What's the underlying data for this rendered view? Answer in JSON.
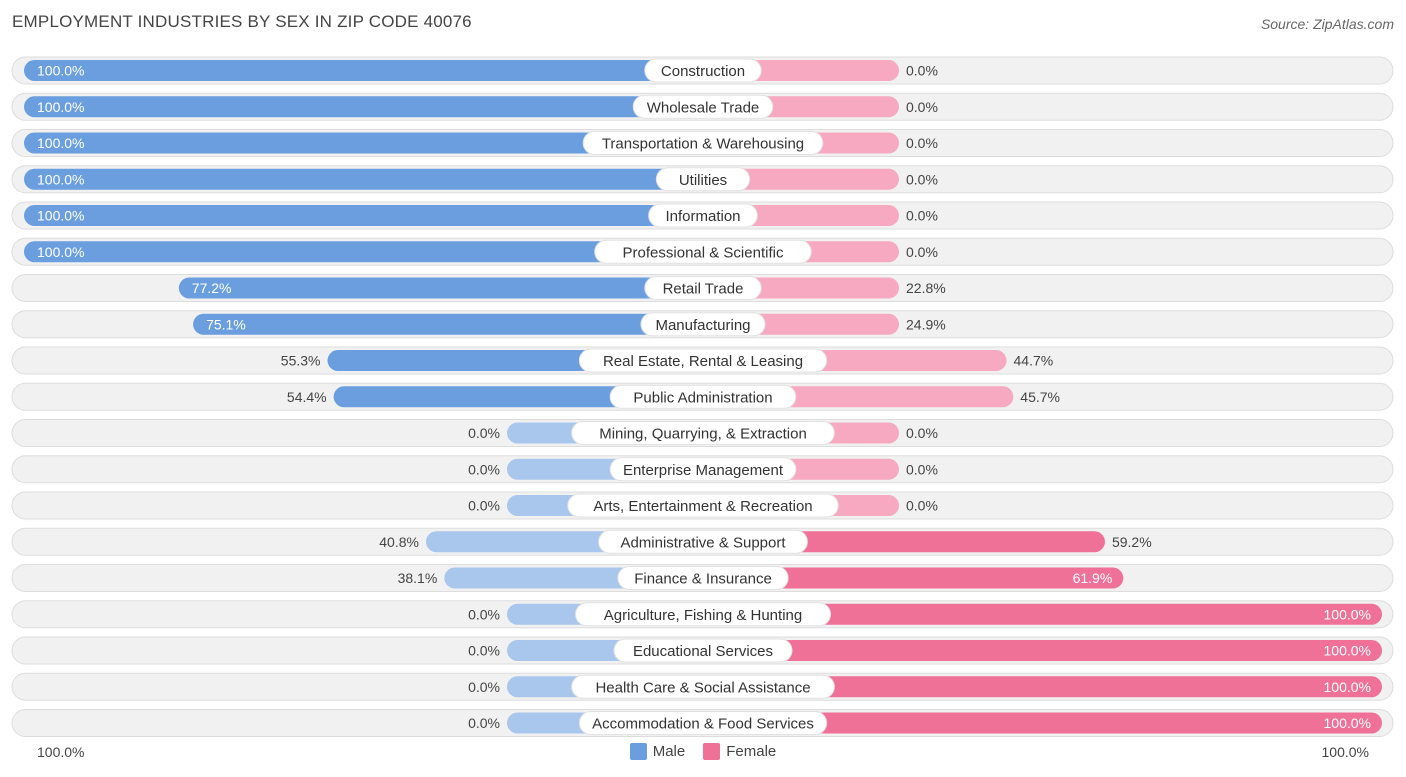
{
  "title": "EMPLOYMENT INDUSTRIES BY SEX IN ZIP CODE 40076",
  "source": "Source: ZipAtlas.com",
  "colors": {
    "male": "#6a9edf",
    "male_light": "#a9c7ec",
    "female": "#f07198",
    "female_light": "#f6a9c0"
  },
  "legend": {
    "male": "Male",
    "female": "Female"
  },
  "axis": {
    "left": "100.0%",
    "right": "100.0%"
  },
  "chart_data": {
    "type": "bar",
    "orientation": "horizontal-diverging",
    "title": "EMPLOYMENT INDUSTRIES BY SEX IN ZIP CODE 40076",
    "categories": [
      "Construction",
      "Wholesale Trade",
      "Transportation & Warehousing",
      "Utilities",
      "Information",
      "Professional & Scientific",
      "Retail Trade",
      "Manufacturing",
      "Real Estate, Rental & Leasing",
      "Public Administration",
      "Mining, Quarrying, & Extraction",
      "Enterprise Management",
      "Arts, Entertainment & Recreation",
      "Administrative & Support",
      "Finance & Insurance",
      "Agriculture, Fishing & Hunting",
      "Educational Services",
      "Health Care & Social Assistance",
      "Accommodation & Food Services"
    ],
    "series": [
      {
        "name": "Male",
        "values": [
          100.0,
          100.0,
          100.0,
          100.0,
          100.0,
          100.0,
          77.2,
          75.1,
          55.3,
          54.4,
          0.0,
          0.0,
          0.0,
          40.8,
          38.1,
          0.0,
          0.0,
          0.0,
          0.0
        ],
        "labels": [
          "100.0%",
          "100.0%",
          "100.0%",
          "100.0%",
          "100.0%",
          "100.0%",
          "77.2%",
          "75.1%",
          "55.3%",
          "54.4%",
          "0.0%",
          "0.0%",
          "0.0%",
          "40.8%",
          "38.1%",
          "0.0%",
          "0.0%",
          "0.0%",
          "0.0%"
        ]
      },
      {
        "name": "Female",
        "values": [
          0.0,
          0.0,
          0.0,
          0.0,
          0.0,
          0.0,
          22.8,
          24.9,
          44.7,
          45.7,
          0.0,
          0.0,
          0.0,
          59.2,
          61.9,
          100.0,
          100.0,
          100.0,
          100.0
        ],
        "labels": [
          "0.0%",
          "0.0%",
          "0.0%",
          "0.0%",
          "0.0%",
          "0.0%",
          "22.8%",
          "24.9%",
          "44.7%",
          "45.7%",
          "0.0%",
          "0.0%",
          "0.0%",
          "59.2%",
          "61.9%",
          "100.0%",
          "100.0%",
          "100.0%",
          "100.0%"
        ]
      }
    ],
    "xlim": [
      -100,
      100
    ],
    "legend": [
      "Male",
      "Female"
    ]
  }
}
